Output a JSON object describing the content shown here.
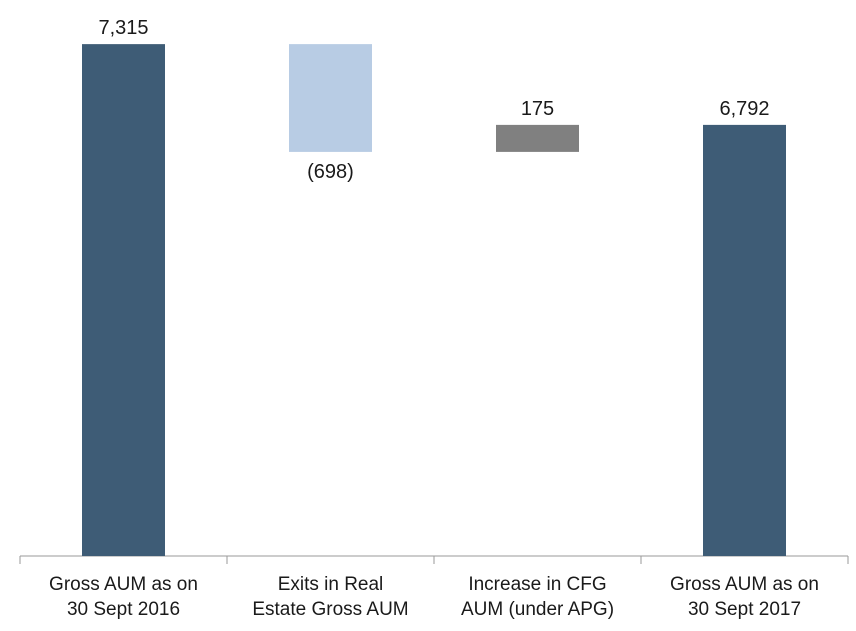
{
  "chart_data": {
    "type": "waterfall",
    "categories": [
      [
        "Gross AUM as on",
        "30 Sept 2016"
      ],
      [
        "Exits in Real",
        "Estate Gross AUM"
      ],
      [
        "Increase in CFG",
        "AUM (under APG)"
      ],
      [
        "Gross AUM as on",
        "30 Sept 2017"
      ]
    ],
    "values": [
      7315,
      -698,
      175,
      6792
    ],
    "value_labels": [
      "7,315",
      "(698)",
      "175",
      "6,792"
    ],
    "total": [
      true,
      false,
      false,
      true
    ],
    "colors": [
      "#3e5c76",
      "#b8cce4",
      "#808080",
      "#3e5c76"
    ],
    "ylim": [
      4000,
      7400
    ]
  }
}
